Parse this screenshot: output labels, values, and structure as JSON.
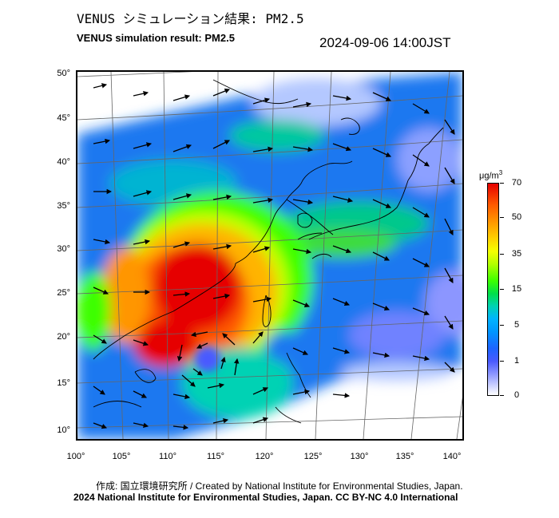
{
  "header": {
    "title_jp": "VENUS シミュレーション結果: PM2.5",
    "title_en": "VENUS simulation result: PM2.5",
    "timestamp": "2024-09-06 14:00JST"
  },
  "map": {
    "latitude_labels": [
      "50°",
      "45°",
      "40°",
      "35°",
      "30°",
      "25°",
      "20°",
      "15°",
      "10°"
    ],
    "longitude_labels": [
      "100°",
      "105°",
      "110°",
      "115°",
      "120°",
      "125°",
      "130°",
      "135°",
      "140°"
    ]
  },
  "legend": {
    "unit_prefix": "μg/m",
    "unit_sup": "3",
    "ticks": [
      "70",
      "50",
      "35",
      "15",
      "5",
      "1",
      "0"
    ],
    "colors": {
      "very_high": "#e60000",
      "high": "#ff9600",
      "medium_high": "#f5ff00",
      "medium": "#3cff00",
      "low_medium": "#00d2b4",
      "low": "#0096ff",
      "very_low": "#4a5aff",
      "none": "#ffffff"
    }
  },
  "footer": {
    "credit_created": "作成: 国立環境研究所 / Created by National Institute for Environmental Studies, Japan.",
    "credit_copyright": "2024 National Institute for Environmental Studies, Japan. CC BY-NC 4.0 International"
  }
}
